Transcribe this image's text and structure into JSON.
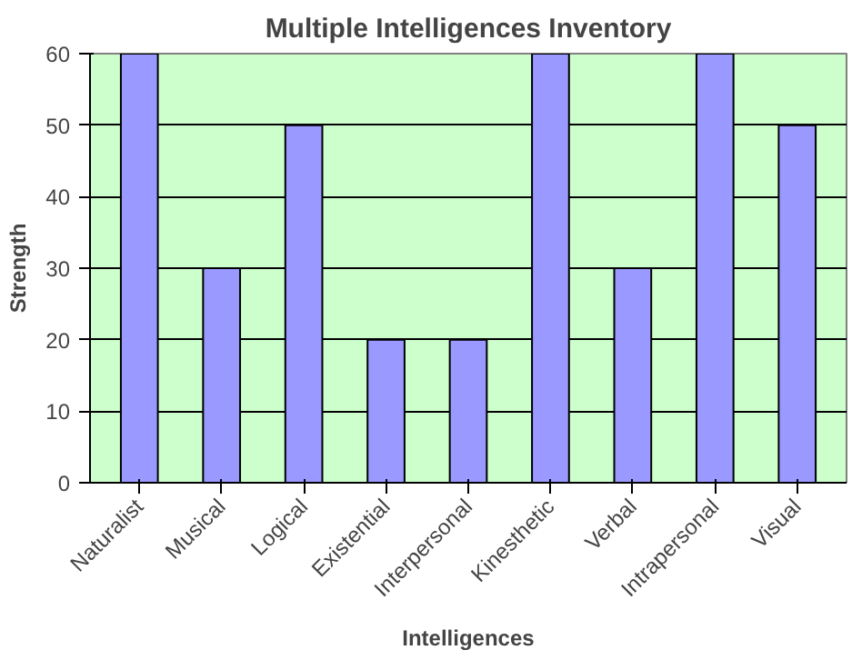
{
  "chart_data": {
    "type": "bar",
    "title": "Multiple Intelligences Inventory",
    "xlabel": "Intelligences",
    "ylabel": "Strength",
    "categories": [
      "Naturalist",
      "Musical",
      "Logical",
      "Existential",
      "Interpersonal",
      "Kinesthetic",
      "Verbal",
      "Intrapersonal",
      "Visual"
    ],
    "values": [
      60,
      30,
      50,
      20,
      20,
      60,
      30,
      60,
      50
    ],
    "color": "#9999ff",
    "ylim": [
      0,
      60
    ],
    "yticks": [
      0,
      10,
      20,
      30,
      40,
      50,
      60
    ],
    "grid": "y"
  }
}
